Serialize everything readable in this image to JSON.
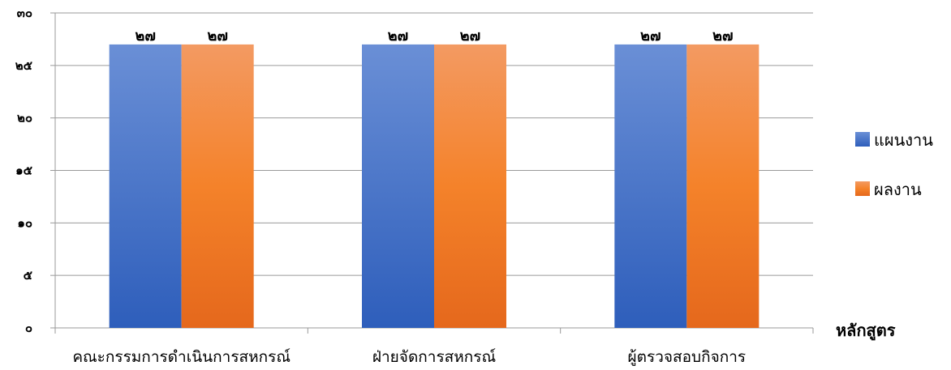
{
  "chart_data": {
    "type": "bar",
    "categories": [
      "คณะกรรมการดำเนินการสหกรณ์",
      "ฝ่ายจัดการสหกรณ์",
      "ผู้ตรวจสอบกิจการ"
    ],
    "series": [
      {
        "name": "แผนงาน",
        "values": [
          27,
          27,
          27
        ],
        "value_labels": [
          "๒๗",
          "๒๗",
          "๒๗"
        ],
        "color": "#4472C4"
      },
      {
        "name": "ผลงาน",
        "values": [
          27,
          27,
          27
        ],
        "value_labels": [
          "๒๗",
          "๒๗",
          "๒๗"
        ],
        "color": "#ED7D31"
      }
    ],
    "xlabel": "หลักสูตร",
    "ylabel": "",
    "ylim": [
      0,
      30
    ],
    "yticks": [
      0,
      5,
      10,
      15,
      20,
      25,
      30
    ],
    "ytick_labels": [
      "๐",
      "๕",
      "๑๐",
      "๑๕",
      "๒๐",
      "๒๕",
      "๓๐"
    ],
    "grid": true,
    "legend_position": "right"
  }
}
